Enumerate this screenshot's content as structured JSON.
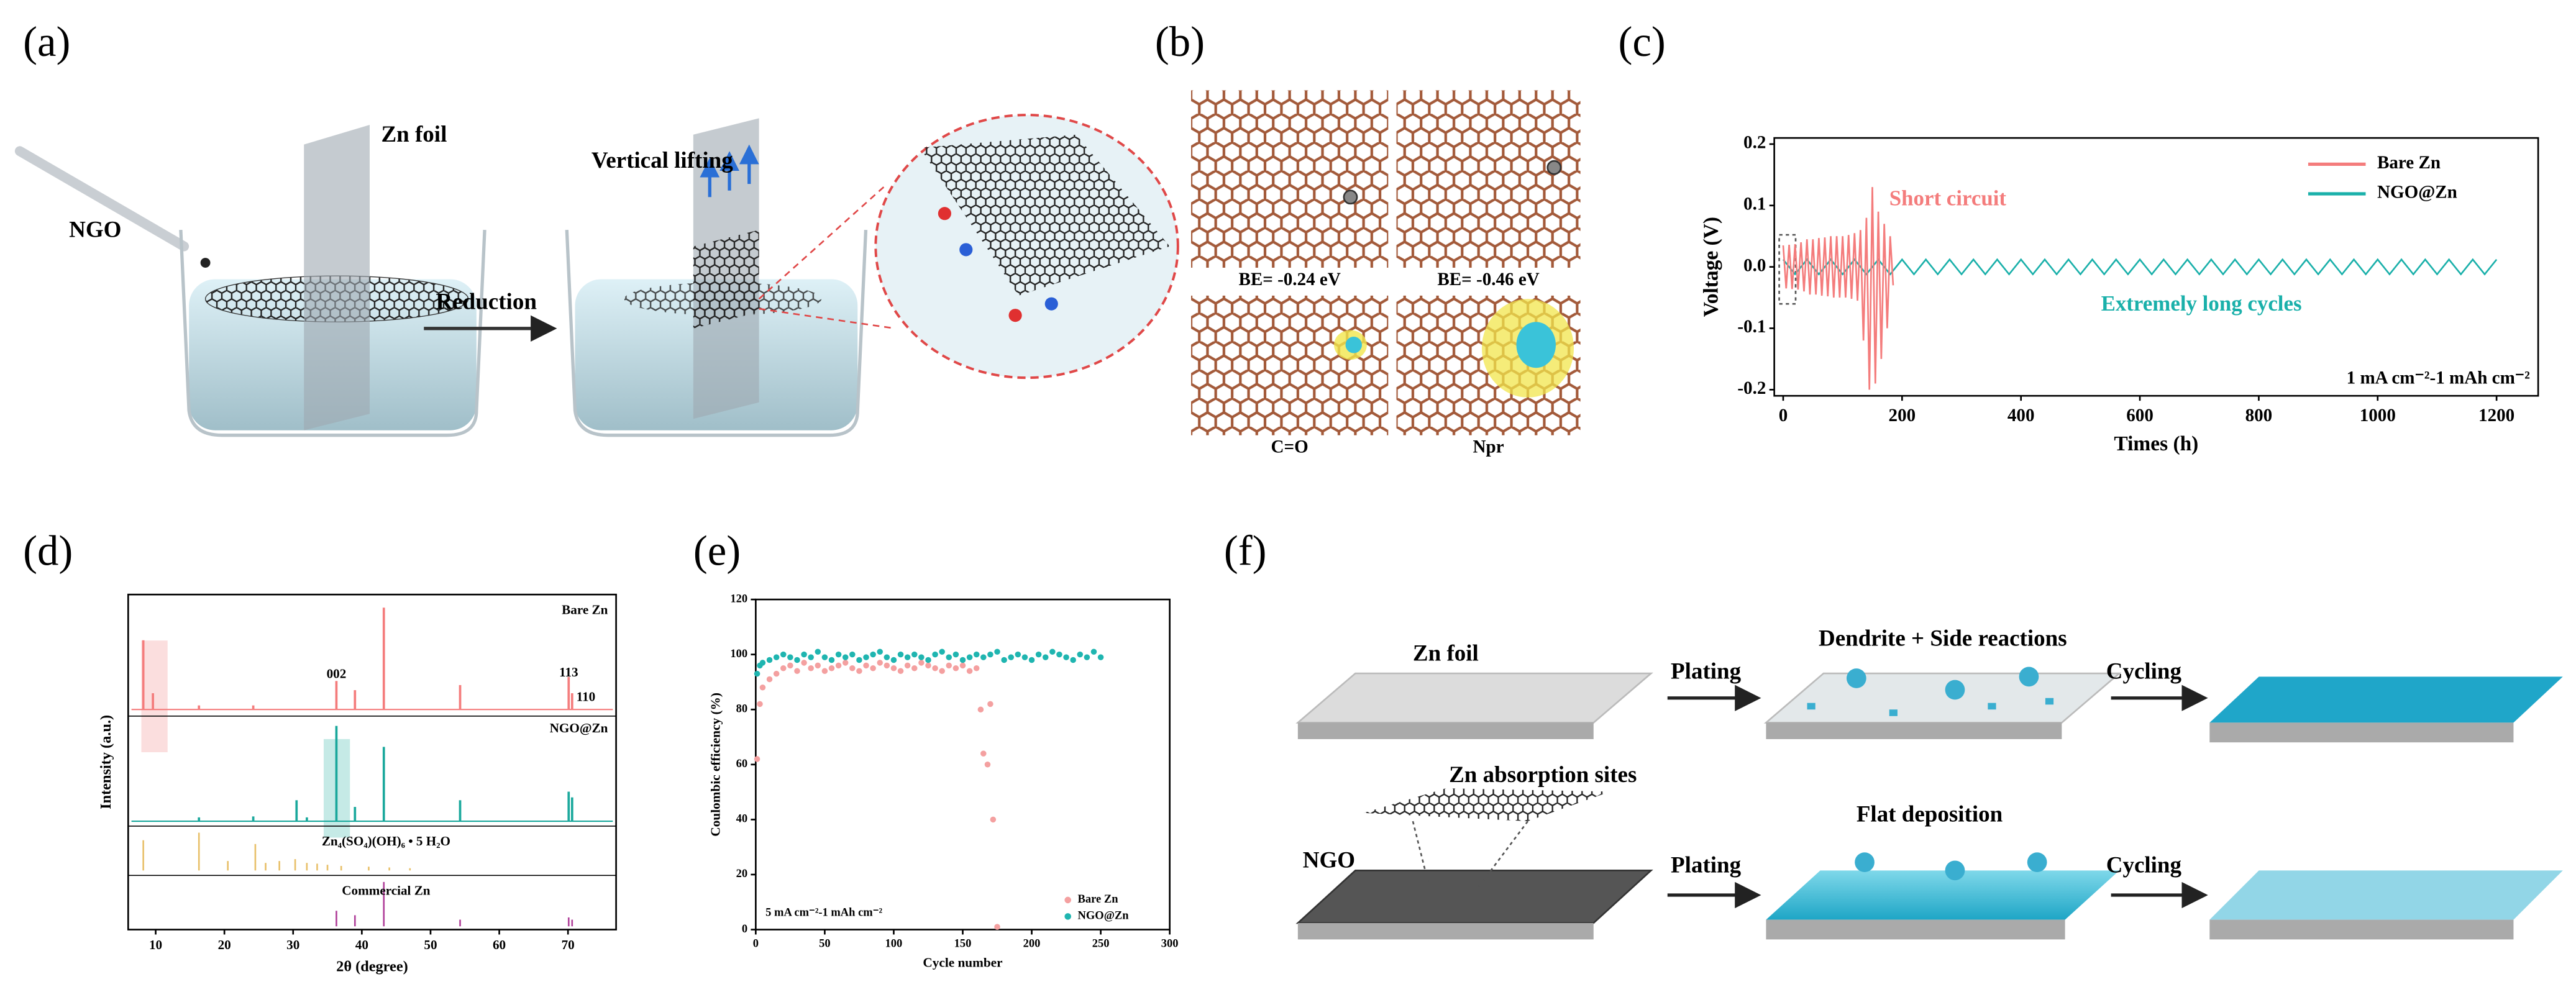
{
  "diagram_a": {
    "label": "(a)",
    "zn_foil": "Zn foil",
    "ngo": "NGO",
    "vertical_lifting": "Vertical lifting",
    "reduction": "Reduction"
  },
  "diagram_b": {
    "label": "(b)",
    "be_left": "BE= -0.24 eV",
    "be_right": "BE= -0.46 eV",
    "site_left": "C=O",
    "site_right": "Npr"
  },
  "diagram_f": {
    "label": "(f)",
    "zn_foil": "Zn foil",
    "plating_top": "Plating",
    "dendrite": "Dendrite + Side reactions",
    "cycling_top": "Cycling",
    "absorption_sites": "Zn absorption sites",
    "ngo": "NGO",
    "plating_bottom": "Plating",
    "flat_deposition": "Flat deposition",
    "cycling_bottom": "Cycling"
  },
  "chart_data": [
    {
      "type": "line",
      "label": "(c)",
      "xlabel": "Times (h)",
      "ylabel": "Voltage (V)",
      "xlim": [
        -15,
        1270
      ],
      "ylim": [
        -0.21,
        0.21
      ],
      "xticks": [
        0,
        200,
        400,
        600,
        800,
        1000,
        1200
      ],
      "yticks": [
        -0.2,
        -0.1,
        {
          "value": 0,
          "label": "0.0"
        },
        0.1,
        0.2
      ],
      "legend": "upper right",
      "annotations": [
        {
          "text": "Short circuit",
          "color": "#f47c7c"
        },
        {
          "text": "Extremely long cycles",
          "color": "#1ab0aa"
        },
        {
          "text": "1 mA cm⁻²-1 mAh cm⁻²",
          "color": "#000000"
        }
      ],
      "series": [
        {
          "name": "NGO@Zn",
          "color": "#1ab0aa",
          "x": [
            0,
            20,
            40,
            60,
            80,
            100,
            120,
            140,
            160,
            180,
            200,
            220,
            240,
            260,
            280,
            300,
            320,
            340,
            360,
            380,
            400,
            420,
            440,
            460,
            480,
            500,
            520,
            540,
            560,
            580,
            600,
            620,
            640,
            660,
            680,
            700,
            720,
            740,
            760,
            780,
            800,
            820,
            840,
            860,
            880,
            900,
            920,
            940,
            960,
            980,
            1000,
            1020,
            1040,
            1060,
            1080,
            1100,
            1120,
            1140,
            1160,
            1180,
            1200
          ],
          "values": [
            0.012,
            -0.012,
            0.012,
            -0.012,
            0.012,
            -0.012,
            0.012,
            -0.012,
            0.012,
            -0.012,
            0.012,
            -0.012,
            0.012,
            -0.012,
            0.012,
            -0.012,
            0.012,
            -0.012,
            0.012,
            -0.012,
            0.012,
            -0.012,
            0.012,
            -0.012,
            0.012,
            -0.012,
            0.012,
            -0.012,
            0.012,
            -0.012,
            0.012,
            -0.012,
            0.012,
            -0.012,
            0.012,
            -0.012,
            0.012,
            -0.012,
            0.012,
            -0.012,
            0.012,
            -0.012,
            0.012,
            -0.012,
            0.012,
            -0.012,
            0.012,
            -0.012,
            0.012,
            -0.012,
            0.012,
            -0.012,
            0.012,
            -0.012,
            0.012,
            -0.012,
            0.012,
            -0.012,
            0.012,
            -0.012,
            0.012
          ]
        },
        {
          "name": "Bare Zn",
          "color": "#f47c7c",
          "x": [
            0,
            5,
            10,
            15,
            20,
            25,
            30,
            35,
            40,
            45,
            50,
            55,
            60,
            65,
            70,
            75,
            80,
            85,
            90,
            95,
            100,
            105,
            110,
            115,
            120,
            125,
            130,
            135,
            140,
            145,
            150,
            155,
            160,
            165,
            170,
            175,
            180,
            185
          ],
          "values": [
            0.035,
            -0.035,
            0.036,
            -0.036,
            0.037,
            -0.037,
            0.04,
            -0.04,
            0.045,
            -0.045,
            0.045,
            -0.045,
            0.047,
            -0.047,
            0.048,
            -0.048,
            0.05,
            -0.05,
            0.05,
            -0.05,
            0.05,
            -0.05,
            0.052,
            -0.052,
            0.055,
            -0.055,
            0.06,
            -0.12,
            0.08,
            -0.2,
            0.13,
            -0.19,
            0.09,
            -0.15,
            0.07,
            -0.1,
            0.05,
            -0.03
          ]
        }
      ]
    },
    {
      "type": "stick",
      "label": "(d)",
      "xlabel": "2θ (degree)",
      "ylabel": "Intensity (a.u.)",
      "xlim": [
        6,
        77
      ],
      "xticks": [
        10,
        20,
        30,
        40,
        50,
        60,
        70
      ],
      "ylim": [
        0,
        100
      ],
      "annotations": [
        {
          "text": "002",
          "x": 36.3
        },
        {
          "text": "113",
          "x": 70.1
        },
        {
          "text": "110",
          "x": 72.6
        }
      ],
      "series": [
        {
          "name": "Bare Zn",
          "color": "#f47c7c",
          "x": [
            8.2,
            9.6,
            16.3,
            24.2,
            36.3,
            39.0,
            43.2,
            54.3,
            70.1,
            70.6
          ],
          "values": [
            68,
            16,
            4,
            4,
            28,
            19,
            100,
            24,
            32,
            16
          ]
        },
        {
          "name": "NGO@Zn",
          "color": "#1aa89c",
          "x": [
            16.3,
            24.2,
            30.5,
            32.0,
            36.3,
            39.0,
            43.2,
            54.3,
            70.1,
            70.6
          ],
          "values": [
            4,
            5,
            22,
            4,
            100,
            15,
            78,
            22,
            31,
            25
          ]
        },
        {
          "name": "Zn₄(SO₄)(OH)₆ • 5 H₂O",
          "color": "#e8c06a",
          "x": [
            8.2,
            16.3,
            20.5,
            24.5,
            26.0,
            28.0,
            30.3,
            32.0,
            33.5,
            35.0,
            37.0,
            41.0,
            44.0,
            47.0
          ],
          "values": [
            80,
            100,
            25,
            70,
            20,
            25,
            30,
            20,
            18,
            15,
            12,
            10,
            8,
            6
          ]
        },
        {
          "name": "Commercial Zn",
          "color": "#b0409a",
          "x": [
            36.3,
            39.0,
            43.2,
            54.3,
            70.1,
            70.6
          ],
          "values": [
            35,
            25,
            100,
            15,
            20,
            15
          ]
        }
      ]
    },
    {
      "type": "scatter",
      "label": "(e)",
      "xlabel": "Cycle number",
      "ylabel": "Coulombic efficiency (%)",
      "xlim": [
        0,
        300
      ],
      "ylim": [
        0,
        120
      ],
      "xticks": [
        0,
        50,
        100,
        150,
        200,
        250,
        300
      ],
      "yticks": [
        0,
        20,
        40,
        60,
        80,
        100,
        120
      ],
      "legend": "lower right",
      "annotations": [
        {
          "text": "5 mA cm⁻²-1 mAh cm⁻²"
        }
      ],
      "series": [
        {
          "name": "Bare Zn",
          "color": "#f4a0a0",
          "x": [
            1,
            3,
            5,
            10,
            15,
            20,
            25,
            30,
            35,
            40,
            45,
            50,
            55,
            60,
            65,
            70,
            75,
            80,
            85,
            90,
            95,
            100,
            105,
            110,
            115,
            120,
            125,
            130,
            135,
            140,
            145,
            150,
            155,
            160,
            163,
            165,
            168,
            170,
            172,
            175
          ],
          "values": [
            62,
            82,
            88,
            91,
            93,
            95,
            96,
            94,
            97,
            95,
            96,
            94,
            95,
            96,
            97,
            95,
            94,
            96,
            95,
            97,
            96,
            95,
            94,
            96,
            95,
            97,
            96,
            95,
            94,
            96,
            95,
            96,
            94,
            95,
            80,
            64,
            60,
            82,
            40,
            1
          ]
        },
        {
          "name": "NGO@Zn",
          "color": "#1fb5b0",
          "x": [
            1,
            3,
            5,
            10,
            15,
            20,
            25,
            30,
            35,
            40,
            45,
            50,
            55,
            60,
            65,
            70,
            75,
            80,
            85,
            90,
            95,
            100,
            105,
            110,
            115,
            120,
            125,
            130,
            135,
            140,
            145,
            150,
            155,
            160,
            165,
            170,
            175,
            180,
            185,
            190,
            195,
            200,
            205,
            210,
            215,
            220,
            225,
            230,
            235,
            240,
            245,
            250
          ],
          "values": [
            93,
            96,
            97,
            98,
            99,
            100,
            99,
            98,
            100,
            99,
            101,
            99,
            98,
            100,
            99,
            100,
            98,
            99,
            100,
            101,
            99,
            98,
            100,
            99,
            100,
            99,
            98,
            100,
            101,
            99,
            100,
            98,
            99,
            100,
            99,
            100,
            101,
            98,
            99,
            100,
            99,
            98,
            100,
            99,
            101,
            100,
            99,
            98,
            100,
            99,
            101,
            99
          ]
        }
      ]
    }
  ]
}
